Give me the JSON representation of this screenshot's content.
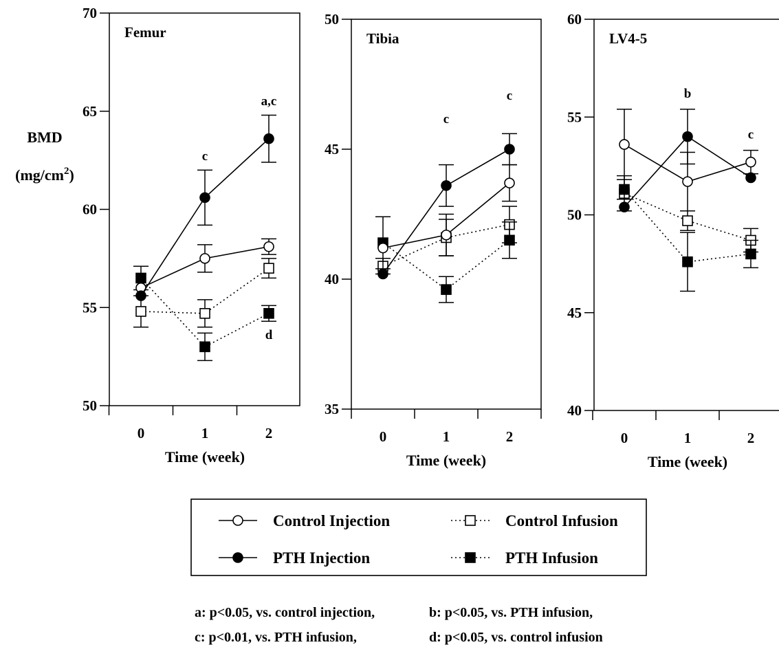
{
  "colors": {
    "ink": "#000000",
    "background": "#ffffff"
  },
  "chart_data": [
    {
      "type": "line",
      "title": "Femur",
      "xlabel": "Time (week)",
      "ylabel": "BMD",
      "ylabel_unit": "(mg/cm",
      "ylabel_sup": "2",
      "ylabel_close": ")",
      "categories": [
        "0",
        "1",
        "2"
      ],
      "ylim": [
        50,
        70
      ],
      "yticks": [
        50,
        55,
        60,
        65,
        70
      ],
      "series": [
        {
          "name": "Control Injection",
          "values": [
            56.0,
            57.5,
            58.1
          ],
          "errors": [
            0.0,
            0.7,
            0.4
          ]
        },
        {
          "name": "PTH Injection",
          "values": [
            55.6,
            60.6,
            63.6
          ],
          "errors": [
            0.0,
            1.4,
            1.2
          ]
        },
        {
          "name": "Control Infusion",
          "values": [
            54.8,
            54.7,
            57.0
          ],
          "errors": [
            0.8,
            0.7,
            0.5
          ]
        },
        {
          "name": "PTH Infusion",
          "values": [
            56.5,
            53.0,
            54.7
          ],
          "errors": [
            0.6,
            0.7,
            0.4
          ]
        }
      ],
      "annotations": [
        {
          "text": "c",
          "x": "1",
          "y": 62.5
        },
        {
          "text": "a,c",
          "x": "2",
          "y": 65.3
        },
        {
          "text": "d",
          "x": "2",
          "y": 53.4
        }
      ]
    },
    {
      "type": "line",
      "title": "Tibia",
      "xlabel": "Time (week)",
      "categories": [
        "0",
        "1",
        "2"
      ],
      "ylim": [
        35,
        50
      ],
      "yticks": [
        35,
        40,
        45,
        50
      ],
      "series": [
        {
          "name": "Control Injection",
          "values": [
            41.2,
            41.7,
            43.7
          ],
          "errors": [
            0.0,
            0.8,
            0.7
          ]
        },
        {
          "name": "PTH Injection",
          "values": [
            40.2,
            43.6,
            45.0
          ],
          "errors": [
            0.0,
            0.8,
            0.6
          ]
        },
        {
          "name": "Control Infusion",
          "values": [
            40.5,
            41.6,
            42.1
          ],
          "errors": [
            0.3,
            0.7,
            0.7
          ]
        },
        {
          "name": "PTH Infusion",
          "values": [
            41.4,
            39.6,
            41.5
          ],
          "errors": [
            1.0,
            0.5,
            0.7
          ]
        }
      ],
      "annotations": [
        {
          "text": "c",
          "x": "1",
          "y": 46.0
        },
        {
          "text": "c",
          "x": "2",
          "y": 46.9
        }
      ]
    },
    {
      "type": "line",
      "title": "LV4-5",
      "xlabel": "Time (week)",
      "categories": [
        "0",
        "1",
        "2"
      ],
      "ylim": [
        40,
        60
      ],
      "yticks": [
        40,
        45,
        50,
        55,
        60
      ],
      "series": [
        {
          "name": "Control Injection",
          "values": [
            53.6,
            51.7,
            52.7
          ],
          "errors": [
            1.8,
            1.5,
            0.6
          ]
        },
        {
          "name": "PTH Injection",
          "values": [
            50.4,
            54.0,
            51.9
          ],
          "errors": [
            0.0,
            1.4,
            0.0
          ]
        },
        {
          "name": "Control Infusion",
          "values": [
            51.1,
            49.7,
            48.7
          ],
          "errors": [
            0.9,
            0.5,
            0.6
          ]
        },
        {
          "name": "PTH Infusion",
          "values": [
            51.3,
            47.6,
            48.0
          ],
          "errors": [
            0.5,
            1.5,
            0.7
          ]
        }
      ],
      "annotations": [
        {
          "text": "b",
          "x": "1",
          "y": 56.0
        },
        {
          "text": "c",
          "x": "2",
          "y": 53.9
        }
      ]
    }
  ],
  "legend": {
    "items": [
      {
        "label": "Control Injection",
        "style": "solid",
        "marker": "open-circle"
      },
      {
        "label": "Control Infusion",
        "style": "dotted",
        "marker": "open-square"
      },
      {
        "label": "PTH Injection",
        "style": "solid",
        "marker": "filled-circle"
      },
      {
        "label": "PTH Infusion",
        "style": "dotted",
        "marker": "filled-square"
      }
    ]
  },
  "footnotes": {
    "a": "a: p<0.05, vs. control injection,",
    "b": "b: p<0.05, vs. PTH infusion,",
    "c": "c: p<0.01, vs. PTH infusion,",
    "d": "d: p<0.05, vs. control infusion"
  }
}
